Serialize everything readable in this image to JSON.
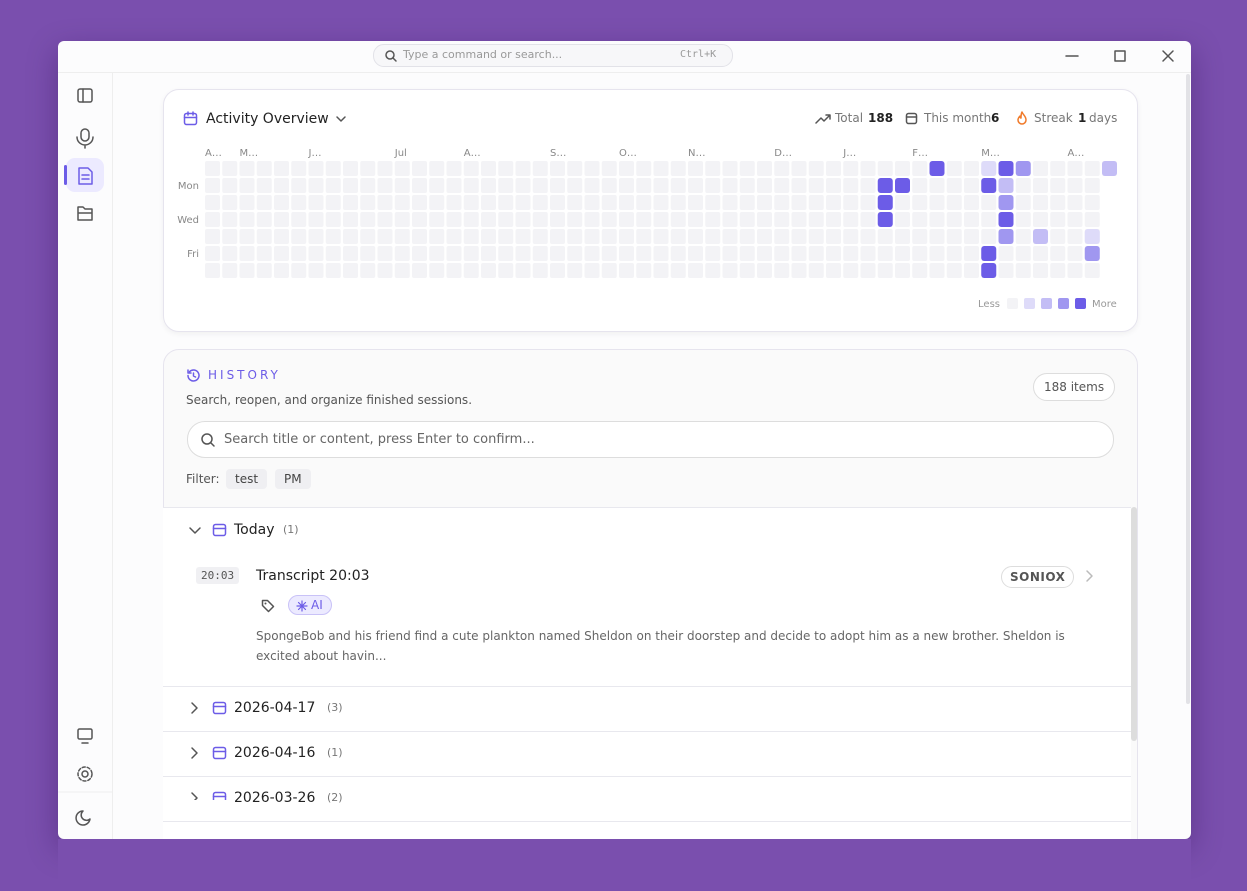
{
  "titlebar": {
    "search_placeholder": "Type a command or search...",
    "shortcut": "Ctrl+K"
  },
  "activity": {
    "title": "Activity Overview",
    "total_label": "Total",
    "total": 188,
    "month_label": "This month",
    "month": 6,
    "streak_label": "Streak",
    "streak": 1,
    "streak_unit": "days",
    "months": [
      {
        "label": "A…",
        "week": 0
      },
      {
        "label": "M…",
        "week": 2
      },
      {
        "label": "J…",
        "week": 6
      },
      {
        "label": "Jul",
        "week": 11
      },
      {
        "label": "A…",
        "week": 15
      },
      {
        "label": "S…",
        "week": 20
      },
      {
        "label": "O…",
        "week": 24
      },
      {
        "label": "N…",
        "week": 28
      },
      {
        "label": "D…",
        "week": 33
      },
      {
        "label": "J…",
        "week": 37
      },
      {
        "label": "F…",
        "week": 41
      },
      {
        "label": "M…",
        "week": 45
      },
      {
        "label": "A…",
        "week": 50
      }
    ],
    "days": [
      {
        "label": "Mon",
        "day": 1
      },
      {
        "label": "Wed",
        "day": 3
      },
      {
        "label": "Fri",
        "day": 5
      }
    ],
    "colors": [
      "#f3f3f6",
      "#dedbf9",
      "#c3bdf5",
      "#a097f0",
      "#6c5ce7"
    ],
    "cells": [
      {
        "week": 42,
        "day": 0,
        "level": 4
      },
      {
        "week": 45,
        "day": 0,
        "level": 1
      },
      {
        "week": 46,
        "day": 0,
        "level": 4
      },
      {
        "week": 47,
        "day": 0,
        "level": 3
      },
      {
        "week": 52,
        "day": 0,
        "level": 2
      },
      {
        "week": 39,
        "day": 1,
        "level": 4
      },
      {
        "week": 40,
        "day": 1,
        "level": 4
      },
      {
        "week": 45,
        "day": 1,
        "level": 4
      },
      {
        "week": 46,
        "day": 1,
        "level": 2
      },
      {
        "week": 39,
        "day": 2,
        "level": 4
      },
      {
        "week": 46,
        "day": 2,
        "level": 3
      },
      {
        "week": 39,
        "day": 3,
        "level": 4
      },
      {
        "week": 46,
        "day": 3,
        "level": 4
      },
      {
        "week": 46,
        "day": 4,
        "level": 3
      },
      {
        "week": 48,
        "day": 4,
        "level": 2
      },
      {
        "week": 51,
        "day": 4,
        "level": 1
      },
      {
        "week": 45,
        "day": 5,
        "level": 4
      },
      {
        "week": 51,
        "day": 5,
        "level": 3
      },
      {
        "week": 45,
        "day": 6,
        "level": 4
      }
    ],
    "legend_less": "Less",
    "legend_more": "More"
  },
  "history": {
    "title": "HISTORY",
    "subtitle": "Search, reopen, and organize finished sessions.",
    "count": "188 items",
    "search_placeholder": "Search title or content, press Enter to confirm...",
    "filter_label": "Filter:",
    "filters": [
      "test",
      "PM"
    ],
    "groups": [
      {
        "label": "Today",
        "count": "(1)",
        "items": [
          {
            "time": "20:03",
            "title": "Transcript 20:03",
            "provider": "SONIOX",
            "tag": "AI",
            "snippet": "SpongeBob and his friend find a cute plankton named Sheldon on their doorstep and decide to adopt him as a new brother. Sheldon is excited about havin..."
          }
        ]
      },
      {
        "label": "2026-04-17",
        "count": "(3)"
      },
      {
        "label": "2026-04-16",
        "count": "(1)"
      },
      {
        "label": "2026-03-26",
        "count": "(2)"
      }
    ]
  }
}
